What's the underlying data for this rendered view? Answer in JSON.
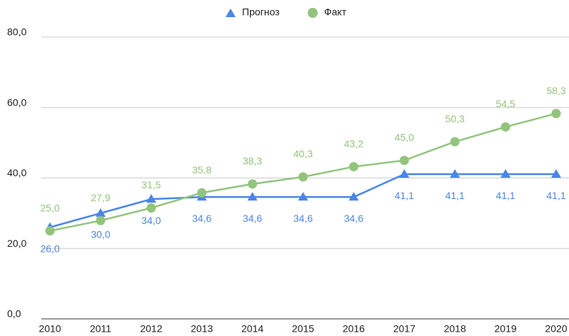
{
  "chart_data": {
    "type": "line",
    "categories": [
      "2010",
      "2011",
      "2012",
      "2013",
      "2014",
      "2015",
      "2016",
      "2017",
      "2018",
      "2019",
      "2020"
    ],
    "series": [
      {
        "name": "Прогноз",
        "color": "#4a86e8",
        "marker": "triangle",
        "values": [
          26.0,
          30.0,
          34.0,
          34.6,
          34.6,
          34.6,
          34.6,
          41.1,
          41.1,
          41.1,
          41.1
        ],
        "value_labels": [
          "26,0",
          "30,0",
          "34,0",
          "34,6",
          "34,6",
          "34,6",
          "34,6",
          "41,1",
          "41,1",
          "41,1",
          "41,1"
        ]
      },
      {
        "name": "Факт",
        "color": "#93c47d",
        "marker": "circle",
        "values": [
          25.0,
          27.9,
          31.5,
          35.8,
          38.3,
          40.3,
          43.2,
          45.0,
          50.3,
          54.5,
          58.3
        ],
        "value_labels": [
          "25,0",
          "27,9",
          "31,5",
          "35,8",
          "38,3",
          "40,3",
          "43,2",
          "45,0",
          "50,3",
          "54,5",
          "58,3"
        ]
      }
    ],
    "ylim": [
      0,
      80
    ],
    "yticks": [
      {
        "value": 0,
        "label": "0,0"
      },
      {
        "value": 20,
        "label": "20,0"
      },
      {
        "value": 40,
        "label": "40,0"
      },
      {
        "value": 60,
        "label": "60,0"
      },
      {
        "value": 80,
        "label": "80,0"
      }
    ],
    "grid": true,
    "legend": "top"
  }
}
